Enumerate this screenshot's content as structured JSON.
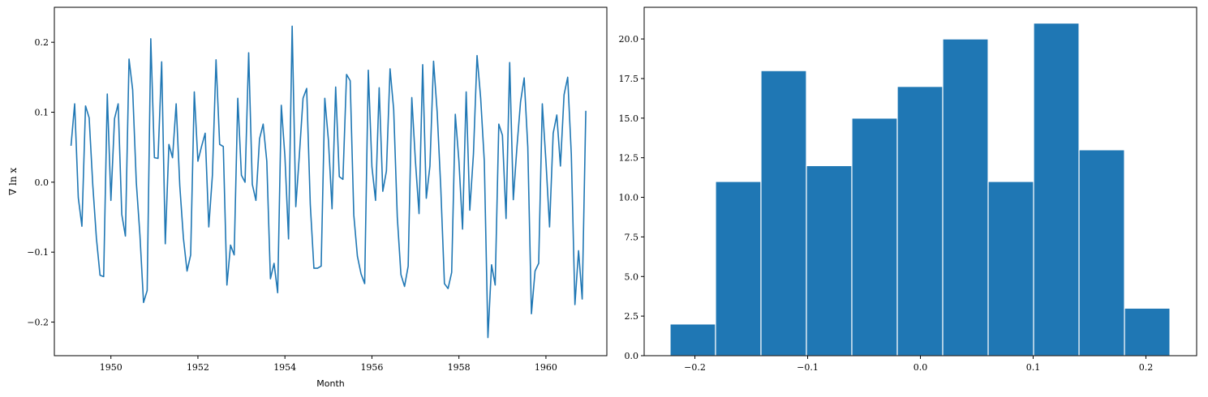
{
  "chart_data": [
    {
      "type": "line",
      "xlabel": "Month",
      "ylabel": "∇ ln x",
      "xlim": [
        1948.7,
        1961.4
      ],
      "ylim": [
        -0.248,
        0.25
      ],
      "xticks": [
        1950,
        1952,
        1954,
        1956,
        1958,
        1960
      ],
      "yticks": [
        -0.2,
        -0.1,
        0.0,
        0.1,
        0.2
      ],
      "ytick_labels": [
        "−0.2",
        "−0.1",
        "0.0",
        "0.1",
        "0.2"
      ],
      "color": "#1f77b4",
      "grid": false,
      "x_start": 1949.0833,
      "x_step": 0.083333,
      "y": [
        0.052,
        0.112,
        -0.022,
        -0.063,
        0.109,
        0.092,
        -0.004,
        -0.08,
        -0.133,
        -0.135,
        0.126,
        -0.026,
        0.091,
        0.112,
        -0.046,
        -0.077,
        0.176,
        0.132,
        0.0,
        -0.075,
        -0.172,
        -0.155,
        0.205,
        0.035,
        0.034,
        0.172,
        -0.088,
        0.054,
        0.035,
        0.112,
        -0.005,
        -0.08,
        -0.127,
        -0.104,
        0.129,
        0.03,
        0.051,
        0.07,
        -0.064,
        0.01,
        0.175,
        0.054,
        0.051,
        -0.147,
        -0.09,
        -0.104,
        0.12,
        0.01,
        0.0,
        0.185,
        -0.003,
        -0.026,
        0.062,
        0.083,
        0.03,
        -0.138,
        -0.116,
        -0.158,
        0.11,
        0.037,
        -0.081,
        0.223,
        -0.035,
        0.04,
        0.12,
        0.134,
        -0.032,
        -0.123,
        -0.123,
        -0.12,
        0.12,
        0.06,
        -0.038,
        0.136,
        0.008,
        0.004,
        0.154,
        0.145,
        -0.047,
        -0.106,
        -0.131,
        -0.145,
        0.16,
        0.022,
        -0.026,
        0.135,
        -0.013,
        0.016,
        0.162,
        0.104,
        -0.05,
        -0.132,
        -0.149,
        -0.12,
        0.121,
        0.03,
        -0.045,
        0.168,
        -0.023,
        0.023,
        0.173,
        0.1,
        -0.009,
        -0.145,
        -0.152,
        -0.129,
        0.097,
        0.03,
        -0.067,
        0.129,
        -0.04,
        0.04,
        0.181,
        0.12,
        0.03,
        -0.222,
        -0.118,
        -0.147,
        0.083,
        0.067,
        -0.052,
        0.171,
        -0.025,
        0.05,
        0.115,
        0.149,
        0.05,
        -0.188,
        -0.127,
        -0.116,
        0.112,
        0.03,
        -0.064,
        0.07,
        0.096,
        0.023,
        0.125,
        0.15,
        0.04,
        -0.175,
        -0.098,
        -0.167,
        0.102
      ]
    },
    {
      "type": "bar",
      "subtype": "histogram",
      "xlim": [
        -0.245,
        0.245
      ],
      "ylim": [
        0,
        22.0
      ],
      "xticks": [
        -0.2,
        -0.1,
        0.0,
        0.1,
        0.2
      ],
      "xtick_labels": [
        "−0.2",
        "−0.1",
        "0.0",
        "0.1",
        "0.2"
      ],
      "yticks": [
        0.0,
        2.5,
        5.0,
        7.5,
        10.0,
        12.5,
        15.0,
        17.5,
        20.0
      ],
      "ytick_labels": [
        "0.0",
        "2.5",
        "5.0",
        "7.5",
        "10.0",
        "12.5",
        "15.0",
        "17.5",
        "20.0"
      ],
      "bin_edges": [
        -0.222,
        -0.1817,
        -0.1414,
        -0.1011,
        -0.0608,
        -0.0205,
        0.0198,
        0.0601,
        0.1004,
        0.1407,
        0.181,
        0.2213
      ],
      "values": [
        2,
        11,
        18,
        12,
        15,
        17,
        20,
        11,
        21,
        13,
        3
      ],
      "color": "#1f77b4",
      "edgecolor": "#ffffff",
      "grid": false
    }
  ]
}
